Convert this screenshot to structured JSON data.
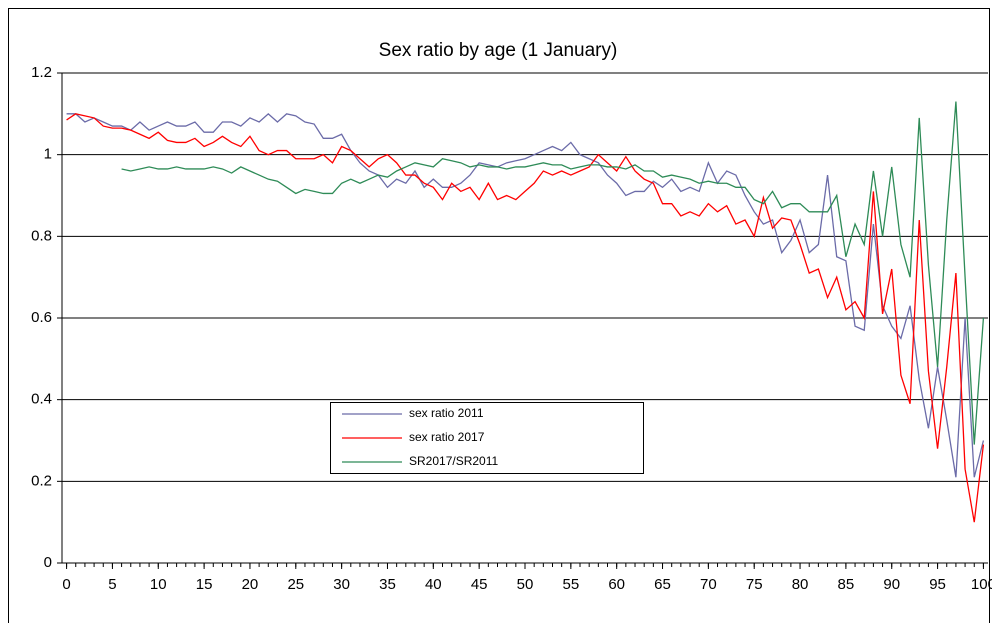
{
  "chart_data": {
    "type": "line",
    "title": "Sex ratio by age (1 January)",
    "x": [
      0,
      1,
      2,
      3,
      4,
      5,
      6,
      7,
      8,
      9,
      10,
      11,
      12,
      13,
      14,
      15,
      16,
      17,
      18,
      19,
      20,
      21,
      22,
      23,
      24,
      25,
      26,
      27,
      28,
      29,
      30,
      31,
      32,
      33,
      34,
      35,
      36,
      37,
      38,
      39,
      40,
      41,
      42,
      43,
      44,
      45,
      46,
      47,
      48,
      49,
      50,
      51,
      52,
      53,
      54,
      55,
      56,
      57,
      58,
      59,
      60,
      61,
      62,
      63,
      64,
      65,
      66,
      67,
      68,
      69,
      70,
      71,
      72,
      73,
      74,
      75,
      76,
      77,
      78,
      79,
      80,
      81,
      82,
      83,
      84,
      85,
      86,
      87,
      88,
      89,
      90,
      91,
      92,
      93,
      94,
      95,
      96,
      97,
      98,
      99,
      100
    ],
    "xlim": [
      -0.5,
      100.5
    ],
    "xticks": [
      0,
      5,
      10,
      15,
      20,
      25,
      30,
      35,
      40,
      45,
      50,
      55,
      60,
      65,
      70,
      75,
      80,
      85,
      90,
      95,
      100
    ],
    "ylim": [
      0,
      1.2
    ],
    "yticks": [
      0,
      0.2,
      0.4,
      0.6,
      0.8,
      1,
      1.2
    ],
    "grid": true,
    "series": [
      {
        "name": "sex ratio 2011",
        "color": "#6b6ba8",
        "values": [
          1.1,
          1.1,
          1.08,
          1.09,
          1.08,
          1.07,
          1.07,
          1.06,
          1.08,
          1.06,
          1.07,
          1.08,
          1.07,
          1.07,
          1.08,
          1.055,
          1.055,
          1.08,
          1.08,
          1.07,
          1.09,
          1.08,
          1.1,
          1.08,
          1.1,
          1.095,
          1.08,
          1.075,
          1.04,
          1.04,
          1.05,
          1.01,
          0.98,
          0.96,
          0.95,
          0.92,
          0.94,
          0.93,
          0.96,
          0.92,
          0.94,
          0.92,
          0.92,
          0.93,
          0.95,
          0.98,
          0.975,
          0.97,
          0.98,
          0.985,
          0.99,
          1.0,
          1.01,
          1.02,
          1.01,
          1.03,
          1.0,
          0.99,
          0.98,
          0.95,
          0.93,
          0.9,
          0.91,
          0.91,
          0.935,
          0.92,
          0.94,
          0.91,
          0.92,
          0.91,
          0.98,
          0.93,
          0.96,
          0.95,
          0.9,
          0.86,
          0.83,
          0.84,
          0.76,
          0.79,
          0.84,
          0.76,
          0.78,
          0.95,
          0.75,
          0.74,
          0.58,
          0.57,
          0.83,
          0.63,
          0.58,
          0.55,
          0.63,
          0.45,
          0.33,
          0.48,
          0.35,
          0.21,
          0.6,
          0.21,
          0.3
        ]
      },
      {
        "name": "sex ratio 2017",
        "color": "#ff0000",
        "values": [
          1.085,
          1.1,
          1.095,
          1.09,
          1.07,
          1.065,
          1.065,
          1.06,
          1.05,
          1.04,
          1.055,
          1.035,
          1.03,
          1.03,
          1.04,
          1.02,
          1.03,
          1.045,
          1.03,
          1.02,
          1.045,
          1.01,
          1.0,
          1.01,
          1.01,
          0.99,
          0.99,
          0.99,
          1.0,
          0.98,
          1.02,
          1.01,
          0.99,
          0.97,
          0.99,
          1.0,
          0.98,
          0.95,
          0.95,
          0.93,
          0.92,
          0.89,
          0.93,
          0.91,
          0.92,
          0.89,
          0.93,
          0.89,
          0.9,
          0.89,
          0.91,
          0.93,
          0.96,
          0.95,
          0.96,
          0.95,
          0.96,
          0.97,
          1.0,
          0.98,
          0.96,
          0.995,
          0.96,
          0.94,
          0.93,
          0.88,
          0.88,
          0.85,
          0.86,
          0.85,
          0.88,
          0.86,
          0.875,
          0.83,
          0.84,
          0.8,
          0.895,
          0.82,
          0.845,
          0.84,
          0.78,
          0.71,
          0.72,
          0.65,
          0.7,
          0.62,
          0.64,
          0.6,
          0.91,
          0.61,
          0.72,
          0.46,
          0.39,
          0.84,
          0.47,
          0.28,
          0.48,
          0.71,
          0.23,
          0.1,
          0.29
        ]
      },
      {
        "name": "SR2017/SR2011",
        "color": "#2e8b57",
        "values": [
          null,
          null,
          null,
          null,
          null,
          null,
          0.965,
          0.96,
          0.965,
          0.97,
          0.965,
          0.965,
          0.97,
          0.965,
          0.965,
          0.965,
          0.97,
          0.965,
          0.955,
          0.97,
          0.96,
          0.95,
          0.94,
          0.935,
          0.92,
          0.905,
          0.915,
          0.91,
          0.905,
          0.905,
          0.93,
          0.94,
          0.93,
          0.94,
          0.95,
          0.945,
          0.96,
          0.97,
          0.98,
          0.975,
          0.97,
          0.99,
          0.985,
          0.98,
          0.97,
          0.975,
          0.97,
          0.97,
          0.965,
          0.97,
          0.97,
          0.975,
          0.98,
          0.975,
          0.975,
          0.965,
          0.97,
          0.975,
          0.975,
          0.97,
          0.97,
          0.965,
          0.975,
          0.96,
          0.96,
          0.945,
          0.95,
          0.945,
          0.94,
          0.93,
          0.935,
          0.93,
          0.93,
          0.92,
          0.92,
          0.89,
          0.88,
          0.91,
          0.87,
          0.88,
          0.88,
          0.86,
          0.86,
          0.86,
          0.9,
          0.75,
          0.83,
          0.78,
          0.96,
          0.8,
          0.97,
          0.78,
          0.7,
          1.09,
          0.73,
          0.48,
          0.84,
          1.13,
          0.7,
          0.29,
          0.6
        ]
      }
    ]
  }
}
